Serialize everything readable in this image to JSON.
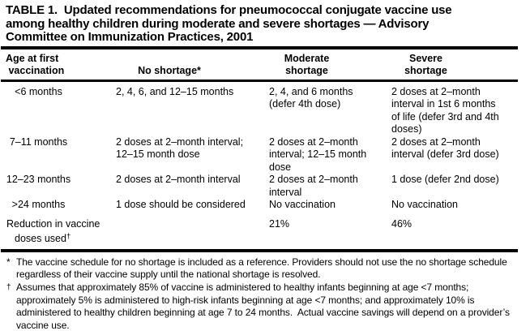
{
  "title": "TABLE 1.  Updated recommendations for pneumococcal conjugate vaccine use\namong healthy children during moderate and severe shortages — Advisory\nCommittee on Immunization Practices, 2001",
  "table": {
    "headers": {
      "age": "Age at first\n vaccination",
      "no_shortage": "No shortage*",
      "moderate": "Moderate shortage",
      "severe": "Severe shortage"
    },
    "rows": [
      {
        "age": "<6 months",
        "no_shortage": "2, 4, 6, and 12–15 months",
        "moderate": "2, 4, and 6 months\n(defer 4th dose)",
        "severe": "2 doses at 2–month\ninterval in 1st 6 months\nof life (defer 3rd and 4th\ndoses)"
      },
      {
        "age": "7–11 months",
        "no_shortage": "2 doses at 2–month interval;\n12–15 month dose",
        "moderate": "2 doses at 2–month\ninterval; 12–15 month\ndose",
        "severe": "2 doses at 2–month\ninterval (defer 3rd dose)"
      },
      {
        "age": "12–23 months",
        "no_shortage": "2 doses at 2–month interval",
        "moderate": "2 doses at 2–month\ninterval",
        "severe": "1 dose (defer 2nd dose)"
      },
      {
        "age": ">24 months",
        "no_shortage": "1 dose should be considered",
        "moderate": "No vaccination",
        "severe": "No vaccination"
      }
    ],
    "summary": {
      "label_line1": "Reduction in vaccine",
      "label_line2": "doses used",
      "label_marker": "†",
      "no_shortage": "",
      "moderate": "21%",
      "severe": "46%"
    }
  },
  "footnotes": [
    {
      "marker": "*",
      "text": "The vaccine schedule for no shortage is included as a reference. Providers should not use the no shortage schedule regardless of their vaccine supply until the national shortage is resolved."
    },
    {
      "marker": "†",
      "text": "Assumes that approximately 85% of vaccine is administered to healthy infants beginning at age <7 months; approximately 5% is administered to high-risk infants beginning at age <7 months; and approximately 10% is administered to healthy children beginning at age 7 to 24 months.  Actual vaccine savings will depend on a provider’s vaccine use."
    }
  ],
  "colors": {
    "text": "#000000",
    "background": "#ffffff",
    "rule": "#000000"
  }
}
